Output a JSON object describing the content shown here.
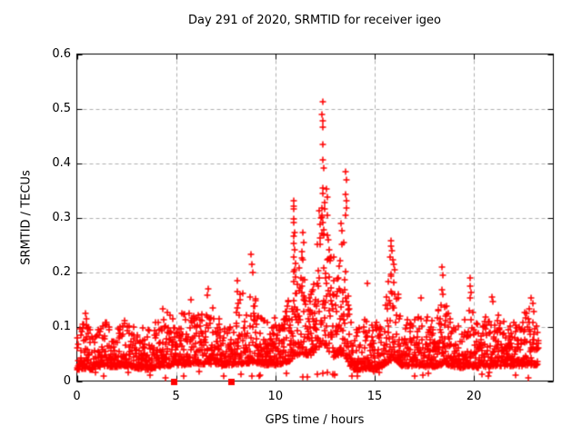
{
  "figure": {
    "background": "#ffffff",
    "border_color": "#000000",
    "text_color": "#000000"
  },
  "chart_data": {
    "type": "scatter",
    "title": "Day 291 of 2020, SRMTID for receiver igeo",
    "xlabel": "GPS time / hours",
    "ylabel": "SRMTID / TECUs",
    "xlim": [
      0,
      24
    ],
    "ylim": [
      0,
      0.6
    ],
    "xticks": [
      0,
      5,
      10,
      15,
      20
    ],
    "yticks": [
      0,
      0.1,
      0.2,
      0.3,
      0.4,
      0.5,
      0.6
    ],
    "grid": true,
    "grid_style": "dashed",
    "grid_color": "#b0b0b0",
    "legend": "none",
    "marker": "plus",
    "marker_color": "#ff0000",
    "marker_size": 7,
    "seed": 1291,
    "samples_per_hour": 96,
    "t_start": 0.01,
    "t_end": 23.25,
    "envelope_profile": [
      [
        0.0,
        0.02,
        0.11,
        2.2
      ],
      [
        0.35,
        0.022,
        0.126,
        2.2
      ],
      [
        0.7,
        0.02,
        0.095,
        2.2
      ],
      [
        1.3,
        0.028,
        0.118,
        2.2
      ],
      [
        1.8,
        0.025,
        0.1,
        2.2
      ],
      [
        2.4,
        0.028,
        0.112,
        2.2
      ],
      [
        3.0,
        0.024,
        0.1,
        2.2
      ],
      [
        3.5,
        0.02,
        0.098,
        2.3
      ],
      [
        4.1,
        0.025,
        0.112,
        2.2
      ],
      [
        4.45,
        0.028,
        0.13,
        2.2
      ],
      [
        5.0,
        0.028,
        0.112,
        2.2
      ],
      [
        5.5,
        0.03,
        0.135,
        2.1
      ],
      [
        5.95,
        0.032,
        0.145,
        2.1
      ],
      [
        6.35,
        0.03,
        0.12,
        2.2
      ],
      [
        6.65,
        0.032,
        0.15,
        2.3
      ],
      [
        7.1,
        0.028,
        0.115,
        2.2
      ],
      [
        7.6,
        0.028,
        0.112,
        2.2
      ],
      [
        8.05,
        0.03,
        0.15,
        2.2
      ],
      [
        8.35,
        0.032,
        0.168,
        2.4
      ],
      [
        8.6,
        0.032,
        0.14,
        2.2
      ],
      [
        8.85,
        0.035,
        0.185,
        2.6
      ],
      [
        9.15,
        0.032,
        0.125,
        2.2
      ],
      [
        9.6,
        0.028,
        0.11,
        2.2
      ],
      [
        10.1,
        0.03,
        0.12,
        2.1
      ],
      [
        10.5,
        0.032,
        0.14,
        2.0
      ],
      [
        10.8,
        0.038,
        0.16,
        2.0
      ],
      [
        10.95,
        0.045,
        0.23,
        2.4
      ],
      [
        11.15,
        0.048,
        0.2,
        2.0
      ],
      [
        11.4,
        0.05,
        0.24,
        2.1
      ],
      [
        11.7,
        0.045,
        0.155,
        2.0
      ],
      [
        11.95,
        0.05,
        0.21,
        1.8
      ],
      [
        12.15,
        0.06,
        0.29,
        1.7
      ],
      [
        12.35,
        0.07,
        0.33,
        1.5
      ],
      [
        12.55,
        0.065,
        0.315,
        1.5
      ],
      [
        12.75,
        0.05,
        0.255,
        1.8
      ],
      [
        13.0,
        0.042,
        0.215,
        2.0
      ],
      [
        13.25,
        0.048,
        0.255,
        1.9
      ],
      [
        13.5,
        0.048,
        0.285,
        2.0
      ],
      [
        13.7,
        0.03,
        0.175,
        2.4
      ],
      [
        13.95,
        0.02,
        0.1,
        2.4
      ],
      [
        14.35,
        0.02,
        0.1,
        2.3
      ],
      [
        14.65,
        0.024,
        0.125,
        2.3
      ],
      [
        15.05,
        0.02,
        0.108,
        2.3
      ],
      [
        15.45,
        0.028,
        0.13,
        2.2
      ],
      [
        15.8,
        0.038,
        0.215,
        2.2
      ],
      [
        16.05,
        0.038,
        0.19,
        2.2
      ],
      [
        16.35,
        0.028,
        0.125,
        2.2
      ],
      [
        16.85,
        0.028,
        0.108,
        2.2
      ],
      [
        17.35,
        0.028,
        0.135,
        2.2
      ],
      [
        17.85,
        0.024,
        0.108,
        2.2
      ],
      [
        18.25,
        0.028,
        0.14,
        2.2
      ],
      [
        18.5,
        0.032,
        0.158,
        2.3
      ],
      [
        18.85,
        0.028,
        0.108,
        2.2
      ],
      [
        19.35,
        0.024,
        0.102,
        2.2
      ],
      [
        19.8,
        0.028,
        0.145,
        2.4
      ],
      [
        20.25,
        0.024,
        0.098,
        2.2
      ],
      [
        20.85,
        0.028,
        0.132,
        2.2
      ],
      [
        21.35,
        0.028,
        0.118,
        2.2
      ],
      [
        21.85,
        0.028,
        0.108,
        2.2
      ],
      [
        22.35,
        0.028,
        0.118,
        2.2
      ],
      [
        22.85,
        0.03,
        0.138,
        2.2
      ],
      [
        23.25,
        0.028,
        0.112,
        2.2
      ]
    ],
    "outliers": [
      [
        0.45,
        0.124
      ],
      [
        0.48,
        0.115
      ],
      [
        4.35,
        0.133
      ],
      [
        5.75,
        0.15
      ],
      [
        6.6,
        0.17
      ],
      [
        6.57,
        0.157
      ],
      [
        8.07,
        0.185
      ],
      [
        8.1,
        0.165
      ],
      [
        8.76,
        0.232
      ],
      [
        8.8,
        0.215
      ],
      [
        8.84,
        0.2
      ],
      [
        10.92,
        0.33
      ],
      [
        10.92,
        0.321
      ],
      [
        10.93,
        0.316
      ],
      [
        10.94,
        0.298
      ],
      [
        10.93,
        0.291
      ],
      [
        10.95,
        0.272
      ],
      [
        10.94,
        0.266
      ],
      [
        10.93,
        0.253
      ],
      [
        10.96,
        0.241
      ],
      [
        10.94,
        0.228
      ],
      [
        10.95,
        0.205
      ],
      [
        10.93,
        0.182
      ],
      [
        11.38,
        0.272
      ],
      [
        11.42,
        0.255
      ],
      [
        11.35,
        0.238
      ],
      [
        12.2,
        0.312
      ],
      [
        12.28,
        0.3
      ],
      [
        12.37,
        0.513
      ],
      [
        12.36,
        0.49
      ],
      [
        12.38,
        0.478
      ],
      [
        12.37,
        0.466
      ],
      [
        12.38,
        0.435
      ],
      [
        12.37,
        0.405
      ],
      [
        12.42,
        0.39
      ],
      [
        12.37,
        0.355
      ],
      [
        12.39,
        0.345
      ],
      [
        12.47,
        0.316
      ],
      [
        12.5,
        0.328
      ],
      [
        12.55,
        0.352
      ],
      [
        12.6,
        0.338
      ],
      [
        12.63,
        0.305
      ],
      [
        13.3,
        0.29
      ],
      [
        13.35,
        0.275
      ],
      [
        13.54,
        0.385
      ],
      [
        13.56,
        0.37
      ],
      [
        13.55,
        0.342
      ],
      [
        13.57,
        0.33
      ],
      [
        13.56,
        0.318
      ],
      [
        13.53,
        0.305
      ],
      [
        14.62,
        0.18
      ],
      [
        15.82,
        0.257
      ],
      [
        15.84,
        0.248
      ],
      [
        15.86,
        0.24
      ],
      [
        15.8,
        0.228
      ],
      [
        15.9,
        0.222
      ],
      [
        15.95,
        0.215
      ],
      [
        16.0,
        0.205
      ],
      [
        17.32,
        0.152
      ],
      [
        18.4,
        0.21
      ],
      [
        18.43,
        0.195
      ],
      [
        18.38,
        0.168
      ],
      [
        18.45,
        0.16
      ],
      [
        19.8,
        0.19
      ],
      [
        19.83,
        0.175
      ],
      [
        19.86,
        0.162
      ],
      [
        19.81,
        0.152
      ],
      [
        20.92,
        0.155
      ],
      [
        20.95,
        0.146
      ],
      [
        22.88,
        0.152
      ],
      [
        22.95,
        0.143
      ],
      [
        12.88,
        0.012
      ],
      [
        14.15,
        0.01
      ],
      [
        20.4,
        0.012
      ]
    ],
    "square_markers": {
      "marker": "filled-square",
      "color": "#ff0000",
      "points": [
        [
          4.87,
          0.0
        ],
        [
          7.77,
          0.0
        ]
      ]
    }
  }
}
